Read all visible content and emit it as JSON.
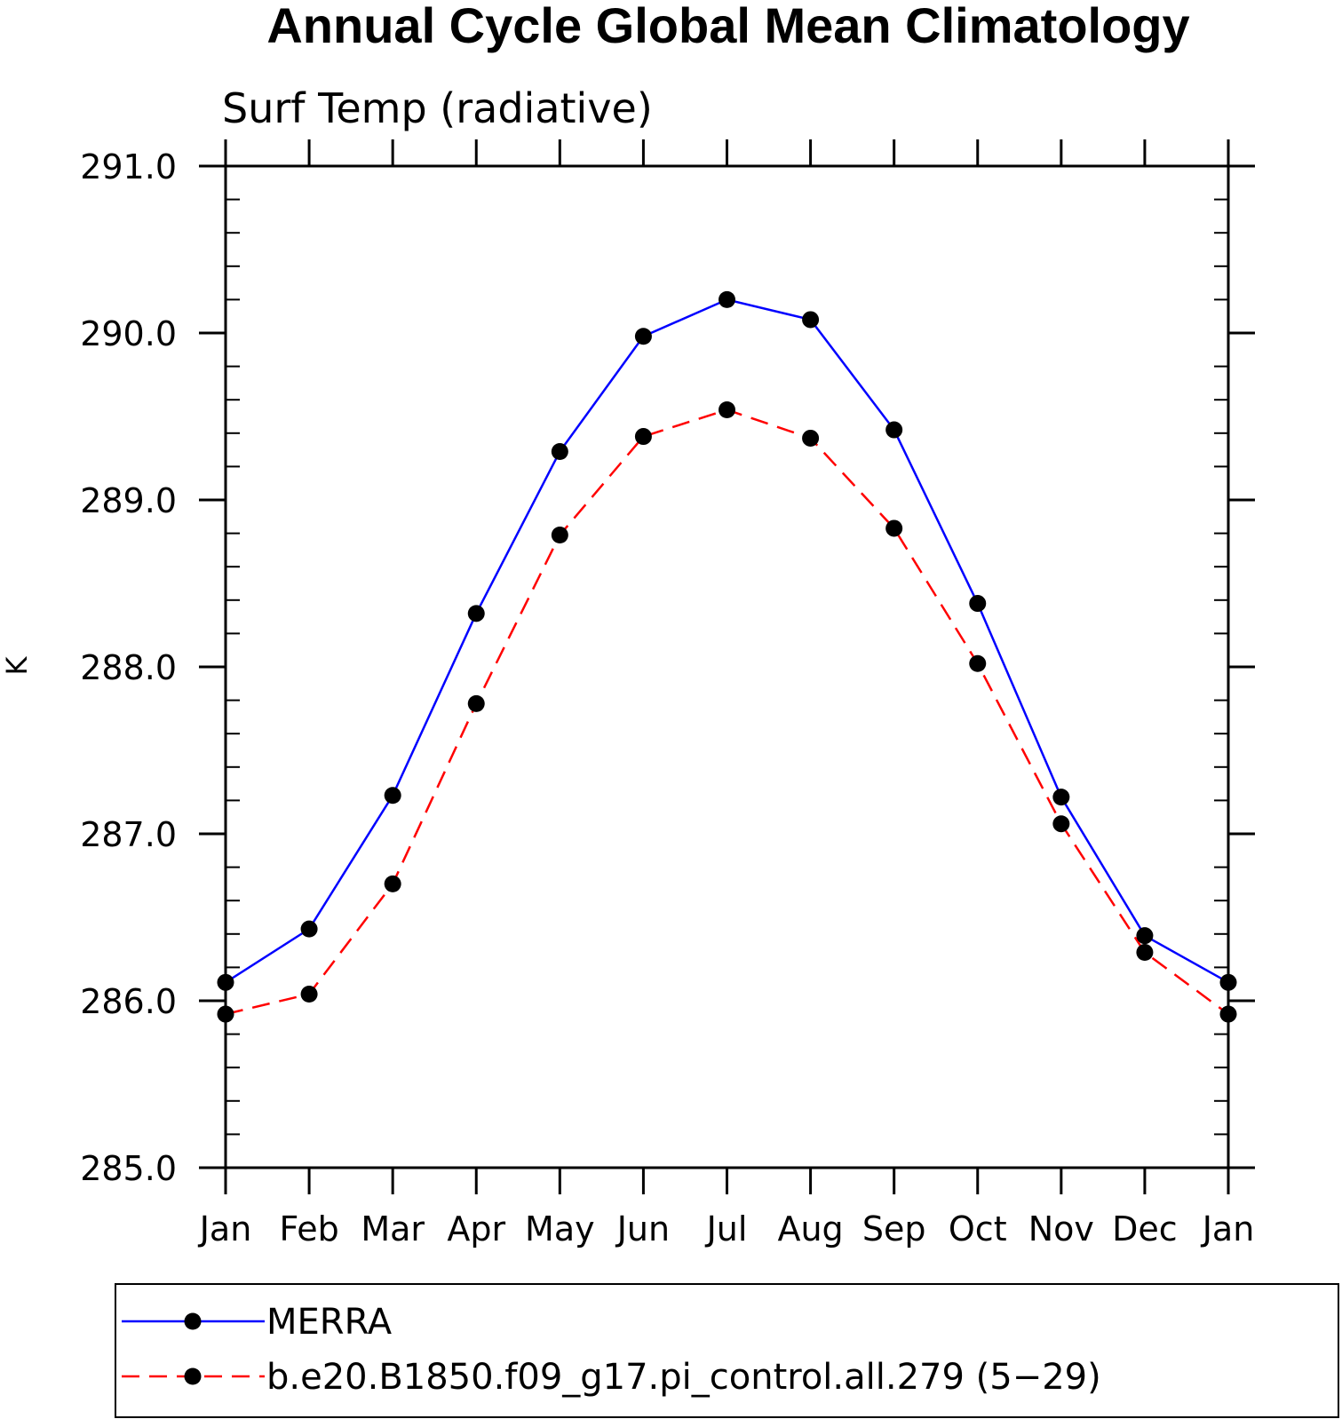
{
  "chart_data": {
    "type": "line",
    "title": "Annual Cycle Global Mean Climatology",
    "subtitle": "Surf Temp (radiative)",
    "xlabel": "",
    "ylabel": "K",
    "categories": [
      "Jan",
      "Feb",
      "Mar",
      "Apr",
      "May",
      "Jun",
      "Jul",
      "Aug",
      "Sep",
      "Oct",
      "Nov",
      "Dec",
      "Jan"
    ],
    "ylim": [
      285.0,
      291.0
    ],
    "yticks": [
      "285.0",
      "286.0",
      "287.0",
      "288.0",
      "289.0",
      "290.0",
      "291.0"
    ],
    "grid": false,
    "legend_position": "bottom",
    "series": [
      {
        "name": "MERRA",
        "color": "#0000ff",
        "line_style": "solid",
        "marker": "circle",
        "values": [
          286.11,
          286.43,
          287.23,
          288.32,
          289.29,
          289.98,
          290.2,
          290.08,
          289.42,
          288.38,
          287.22,
          286.39,
          286.11
        ]
      },
      {
        "name": "b.e20.B1850.f09_g17.pi_control.all.279 (5−29)",
        "color": "#ff0000",
        "line_style": "dashed",
        "marker": "circle",
        "values": [
          285.92,
          286.04,
          286.7,
          287.78,
          288.79,
          289.38,
          289.54,
          289.37,
          288.83,
          288.02,
          287.06,
          286.29,
          285.92
        ]
      }
    ]
  }
}
